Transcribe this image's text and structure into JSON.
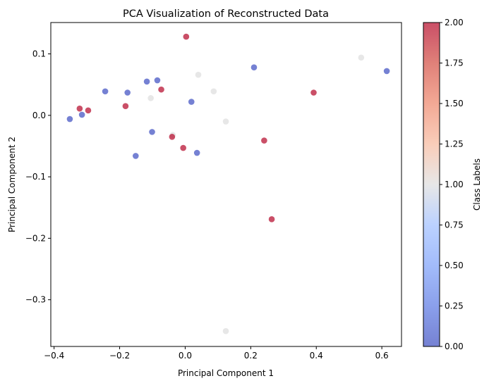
{
  "chart_data": {
    "type": "scatter",
    "title": "PCA Visualization of Reconstructed Data",
    "xlabel": "Principal Component 1",
    "ylabel": "Principal Component 2",
    "xlim": [
      -0.41,
      0.66
    ],
    "ylim": [
      -0.376,
      0.151
    ],
    "xticks": [
      -0.4,
      -0.2,
      0.0,
      0.2,
      0.4,
      0.6
    ],
    "xtick_labels": [
      "−0.4",
      "−0.2",
      "0.0",
      "0.2",
      "0.4",
      "0.6"
    ],
    "yticks": [
      0.1,
      0.0,
      -0.1,
      -0.2,
      -0.3
    ],
    "ytick_labels": [
      "0.1",
      "0.0",
      "−0.1",
      "−0.2",
      "−0.3"
    ],
    "grid": false,
    "colormap": "coolwarm",
    "colorbar": {
      "label": "Class Labels",
      "range": [
        0.0,
        2.0
      ],
      "ticks": [
        0.0,
        0.25,
        0.5,
        0.75,
        1.0,
        1.25,
        1.5,
        1.75,
        2.0
      ],
      "tick_labels": [
        "0.00",
        "0.25",
        "0.50",
        "0.75",
        "1.00",
        "1.25",
        "1.50",
        "1.75",
        "2.00"
      ]
    },
    "points": [
      {
        "x": -0.352,
        "y": -0.006,
        "label": 0
      },
      {
        "x": -0.315,
        "y": 0.001,
        "label": 0
      },
      {
        "x": -0.244,
        "y": 0.039,
        "label": 0
      },
      {
        "x": -0.176,
        "y": 0.037,
        "label": 0
      },
      {
        "x": -0.117,
        "y": 0.055,
        "label": 0
      },
      {
        "x": -0.085,
        "y": 0.057,
        "label": 0
      },
      {
        "x": -0.101,
        "y": -0.027,
        "label": 0
      },
      {
        "x": -0.151,
        "y": -0.066,
        "label": 0
      },
      {
        "x": 0.019,
        "y": 0.022,
        "label": 0
      },
      {
        "x": 0.036,
        "y": -0.061,
        "label": 0
      },
      {
        "x": 0.21,
        "y": 0.078,
        "label": 0
      },
      {
        "x": 0.615,
        "y": 0.072,
        "label": 0
      },
      {
        "x": -0.105,
        "y": 0.028,
        "label": 1
      },
      {
        "x": 0.04,
        "y": 0.066,
        "label": 1
      },
      {
        "x": 0.087,
        "y": 0.039,
        "label": 1
      },
      {
        "x": 0.124,
        "y": -0.01,
        "label": 1
      },
      {
        "x": -0.038,
        "y": -0.032,
        "label": 1
      },
      {
        "x": 0.537,
        "y": 0.094,
        "label": 1
      },
      {
        "x": 0.124,
        "y": -0.351,
        "label": 1
      },
      {
        "x": -0.322,
        "y": 0.011,
        "label": 2
      },
      {
        "x": -0.296,
        "y": 0.008,
        "label": 2
      },
      {
        "x": -0.182,
        "y": 0.015,
        "label": 2
      },
      {
        "x": -0.073,
        "y": 0.042,
        "label": 2
      },
      {
        "x": -0.04,
        "y": -0.035,
        "label": 2
      },
      {
        "x": -0.006,
        "y": -0.053,
        "label": 2
      },
      {
        "x": 0.003,
        "y": 0.128,
        "label": 2
      },
      {
        "x": 0.241,
        "y": -0.041,
        "label": 2
      },
      {
        "x": 0.264,
        "y": -0.169,
        "label": 2
      },
      {
        "x": 0.392,
        "y": 0.037,
        "label": 2
      }
    ]
  }
}
